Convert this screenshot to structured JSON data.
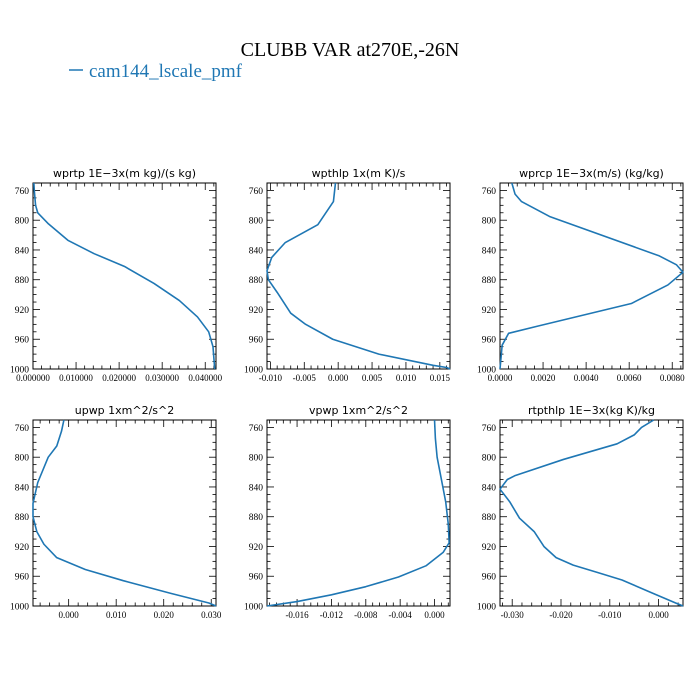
{
  "figure": {
    "title": "CLUBB VAR at270E,-26N",
    "legend_label": "cam144_lscale_pmf",
    "line_color": "#1f77b4"
  },
  "chart_data": [
    {
      "type": "line",
      "title": "wprtp  1E−3x(m kg)/(s kg)",
      "xlim": [
        0.0,
        0.0425
      ],
      "ylim": [
        1000,
        750
      ],
      "yticks": [
        760,
        800,
        840,
        880,
        920,
        960,
        1000
      ],
      "xticks": [
        0.0,
        0.01,
        0.02,
        0.03,
        0.04
      ],
      "xtick_labels": [
        "0.000000",
        "0.010000",
        "0.020000",
        "0.030000",
        "0.040000"
      ],
      "series": [
        {
          "x": [
            0.0002,
            0.0003,
            0.0006,
            0.0011,
            0.0036,
            0.0081,
            0.0142,
            0.0212,
            0.0281,
            0.034,
            0.0382,
            0.0408,
            0.0418,
            0.0422
          ],
          "y": [
            750,
            760,
            780,
            790,
            805,
            827,
            845,
            862,
            885,
            908,
            930,
            950,
            970,
            1000
          ]
        }
      ]
    },
    {
      "type": "line",
      "title": "wpthlp  1x(m K)/s",
      "xlim": [
        -0.0105,
        0.0165
      ],
      "ylim": [
        1000,
        750
      ],
      "yticks": [
        760,
        800,
        840,
        880,
        920,
        960,
        1000
      ],
      "xticks": [
        -0.01,
        -0.005,
        0.0,
        0.005,
        0.01,
        0.015
      ],
      "xtick_labels": [
        "-0.010",
        "-0.005",
        "0.000",
        "0.005",
        "0.010",
        "0.015"
      ],
      "series": [
        {
          "x": [
            -0.0004,
            -0.0007,
            -0.003,
            -0.0078,
            -0.0098,
            -0.0105,
            -0.0103,
            -0.009,
            -0.007,
            -0.0048,
            -0.0008,
            0.006,
            0.014,
            0.016,
            0.0165
          ],
          "y": [
            750,
            775,
            806,
            830,
            850,
            868,
            880,
            897,
            925,
            940,
            960,
            980,
            995,
            998,
            1000
          ]
        }
      ]
    },
    {
      "type": "line",
      "title": "wprcp  1E−3x(m/s) (kg/kg)",
      "xlim": [
        0.0,
        0.0085
      ],
      "ylim": [
        1000,
        750
      ],
      "yticks": [
        760,
        800,
        840,
        880,
        920,
        960,
        1000
      ],
      "xticks": [
        0.0,
        0.002,
        0.004,
        0.006,
        0.008
      ],
      "xtick_labels": [
        "0.0000",
        "0.0020",
        "0.0040",
        "0.0060",
        "0.0080"
      ],
      "series": [
        {
          "x": [
            0.00055,
            0.0007,
            0.001,
            0.0023,
            0.0074,
            0.0082,
            0.0085,
            0.0078,
            0.0061,
            0.0018,
            0.0004,
            0.0001,
            0.0
          ],
          "y": [
            750,
            765,
            775,
            795,
            848,
            860,
            870,
            887,
            912,
            942,
            952,
            968,
            1000
          ]
        }
      ]
    },
    {
      "type": "line",
      "title": "upwp  1xm^2/s^2",
      "xlim": [
        -0.0075,
        0.031
      ],
      "ylim": [
        1000,
        750
      ],
      "yticks": [
        760,
        800,
        840,
        880,
        920,
        960,
        1000
      ],
      "xticks": [
        0.0,
        0.01,
        0.02,
        0.03
      ],
      "xtick_labels": [
        "0.000",
        "0.010",
        "0.020",
        "0.030"
      ],
      "series": [
        {
          "x": [
            -0.001,
            -0.0015,
            -0.0025,
            -0.0043,
            -0.0065,
            -0.0075,
            -0.0075,
            -0.0067,
            -0.0052,
            -0.0025,
            0.0035,
            0.0115,
            0.0215,
            0.0295,
            0.031
          ],
          "y": [
            750,
            765,
            785,
            800,
            834,
            862,
            880,
            900,
            917,
            935,
            951,
            966,
            983,
            996,
            1000
          ]
        }
      ]
    },
    {
      "type": "line",
      "title": "vpwp  1xm^2/s^2",
      "xlim": [
        -0.0195,
        0.0018
      ],
      "ylim": [
        1000,
        750
      ],
      "yticks": [
        760,
        800,
        840,
        880,
        920,
        960,
        1000
      ],
      "xticks": [
        -0.016,
        -0.012,
        -0.008,
        -0.004,
        0.0
      ],
      "xtick_labels": [
        "-0.016",
        "-0.012",
        "-0.008",
        "-0.004",
        "0.000"
      ],
      "series": [
        {
          "x": [
            0.0,
            0.0001,
            0.0003,
            0.0008,
            0.0013,
            0.0016,
            0.0017,
            0.001,
            -0.001,
            -0.0042,
            -0.008,
            -0.012,
            -0.016,
            -0.0195
          ],
          "y": [
            750,
            775,
            800,
            830,
            860,
            890,
            915,
            928,
            946,
            961,
            974,
            985,
            994,
            1000
          ]
        }
      ]
    },
    {
      "type": "line",
      "title": "rtpthlp  1E−3x(kg K)/kg",
      "xlim": [
        -0.0325,
        0.005
      ],
      "ylim": [
        1000,
        750
      ],
      "yticks": [
        760,
        800,
        840,
        880,
        920,
        960,
        1000
      ],
      "xticks": [
        -0.03,
        -0.02,
        -0.01,
        0.0
      ],
      "xtick_labels": [
        "-0.030",
        "-0.020",
        "-0.010",
        "0.000"
      ],
      "series": [
        {
          "x": [
            -0.001,
            -0.0035,
            -0.005,
            -0.0085,
            -0.0195,
            -0.0295,
            -0.031,
            -0.0325,
            -0.0305,
            -0.0285,
            -0.0255,
            -0.0235,
            -0.021,
            -0.0175,
            -0.0125,
            -0.0075,
            -0.0015,
            0.0035,
            0.005
          ],
          "y": [
            750,
            760,
            770,
            782,
            803,
            825,
            830,
            843,
            860,
            882,
            900,
            920,
            935,
            945,
            955,
            965,
            982,
            996,
            1000
          ]
        }
      ]
    }
  ]
}
